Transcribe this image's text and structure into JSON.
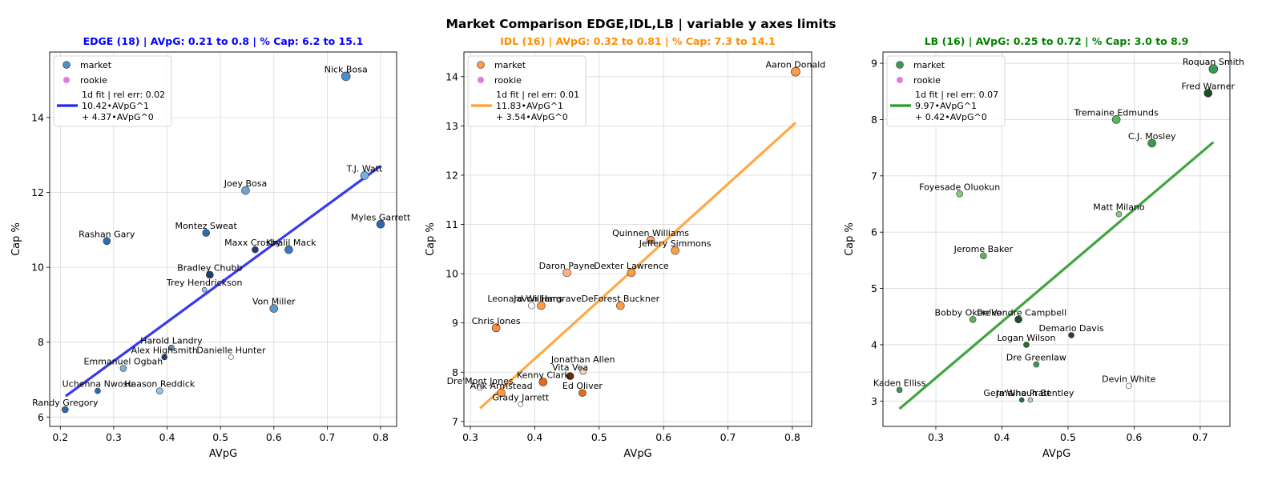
{
  "figure": {
    "title": "Market Comparison EDGE,IDL,LB | variable y axes limits"
  },
  "chart_data": [
    {
      "type": "scatter",
      "title": "EDGE (18) | AVpG: 0.21 to 0.8 | % Cap: 6.2 to 15.1",
      "title_color": "#0000ff",
      "xlabel": "AVpG",
      "ylabel": "Cap %",
      "xlim": [
        0.18,
        0.83
      ],
      "ylim": [
        5.75,
        15.75
      ],
      "xticks": [
        "0.2",
        "0.3",
        "0.4",
        "0.5",
        "0.6",
        "0.7",
        "0.8"
      ],
      "yticks": [
        "6",
        "8",
        "10",
        "12",
        "14"
      ],
      "grid": true,
      "legend_position": "top-left",
      "legend": {
        "market": "market",
        "rookie": "rookie",
        "fit_lines": [
          "1d fit | rel err: 0.02",
          "10.42•AVpG^1",
          "+ 4.37•AVpG^0"
        ]
      },
      "fit": {
        "slope": 10.42,
        "intercept": 4.37,
        "x_range": [
          0.21,
          0.8
        ],
        "color": "#2424f0"
      },
      "points": [
        {
          "name": "Nick Bosa",
          "x": 0.735,
          "y": 15.1,
          "s": 5.5,
          "c": "#4a8fc9"
        },
        {
          "name": "T.J. Watt",
          "x": 0.77,
          "y": 12.45,
          "s": 5,
          "c": "#74b0e0"
        },
        {
          "name": "Myles Garrett",
          "x": 0.8,
          "y": 11.15,
          "s": 5,
          "c": "#2a6aae"
        },
        {
          "name": "Joey Bosa",
          "x": 0.547,
          "y": 12.05,
          "s": 5,
          "c": "#6aa5d8"
        },
        {
          "name": "Rashan Gary",
          "x": 0.287,
          "y": 10.7,
          "s": 4.5,
          "c": "#2d6db0"
        },
        {
          "name": "Montez Sweat",
          "x": 0.473,
          "y": 10.92,
          "s": 4.5,
          "c": "#2a6aae"
        },
        {
          "name": "Maxx Crosby",
          "x": 0.565,
          "y": 10.47,
          "s": 4,
          "c": "#1d3f70"
        },
        {
          "name": "Khalil Mack",
          "x": 0.628,
          "y": 10.47,
          "s": 5,
          "c": "#3a7bbd"
        },
        {
          "name": "Bradley Chubb",
          "x": 0.48,
          "y": 9.8,
          "s": 4.5,
          "c": "#1d3f70"
        },
        {
          "name": "Trey Hendrickson",
          "x": 0.47,
          "y": 9.4,
          "s": 3,
          "c": "#9cc4e8"
        },
        {
          "name": "Von Miller",
          "x": 0.6,
          "y": 8.9,
          "s": 5,
          "c": "#5a98d0"
        },
        {
          "name": "Harold Landry",
          "x": 0.408,
          "y": 7.85,
          "s": 3.5,
          "c": "#5a98d0"
        },
        {
          "name": "Alex Highsmith",
          "x": 0.395,
          "y": 7.6,
          "s": 3.5,
          "c": "#1d3f70"
        },
        {
          "name": "Danielle Hunter",
          "x": 0.52,
          "y": 7.6,
          "s": 3,
          "c": "#ffffff"
        },
        {
          "name": "Emmanuel Ogbah",
          "x": 0.318,
          "y": 7.3,
          "s": 4,
          "c": "#7ab3e0"
        },
        {
          "name": "Uchenna Nwosu",
          "x": 0.27,
          "y": 6.7,
          "s": 3.5,
          "c": "#2a6aae"
        },
        {
          "name": "Haason Reddick",
          "x": 0.386,
          "y": 6.7,
          "s": 4,
          "c": "#9cc4e8"
        },
        {
          "name": "Randy Gregory",
          "x": 0.209,
          "y": 6.2,
          "s": 4,
          "c": "#2a6aae"
        }
      ]
    },
    {
      "type": "scatter",
      "title": "IDL (16) | AVpG: 0.32 to 0.81 | % Cap: 7.3 to 14.1",
      "title_color": "#ff8c00",
      "xlabel": "AVpG",
      "ylabel": "Cap %",
      "xlim": [
        0.29,
        0.83
      ],
      "ylim": [
        6.9,
        14.5
      ],
      "xticks": [
        "0.3",
        "0.4",
        "0.5",
        "0.6",
        "0.7",
        "0.8"
      ],
      "yticks": [
        "7",
        "8",
        "9",
        "10",
        "11",
        "12",
        "13",
        "14"
      ],
      "grid": true,
      "legend_position": "top-left",
      "legend": {
        "market": "market",
        "rookie": "rookie",
        "fit_lines": [
          "1d fit | rel err: 0.01",
          "11.83•AVpG^1",
          "+ 3.54•AVpG^0"
        ]
      },
      "fit": {
        "slope": 11.83,
        "intercept": 3.54,
        "x_range": [
          0.315,
          0.805
        ],
        "color": "#ffa030"
      },
      "points": [
        {
          "name": "Aaron Donald",
          "x": 0.805,
          "y": 14.1,
          "s": 5.5,
          "c": "#ff9a45"
        },
        {
          "name": "Quinnen Williams",
          "x": 0.58,
          "y": 10.68,
          "s": 5,
          "c": "#ffa060"
        },
        {
          "name": "Jeffery Simmons",
          "x": 0.618,
          "y": 10.47,
          "s": 5,
          "c": "#ff9a45"
        },
        {
          "name": "Daron Payne",
          "x": 0.45,
          "y": 10.02,
          "s": 5,
          "c": "#ffb27a"
        },
        {
          "name": "Dexter Lawrence",
          "x": 0.55,
          "y": 10.02,
          "s": 5,
          "c": "#ff9a45"
        },
        {
          "name": "Leonard Williams",
          "x": 0.395,
          "y": 9.35,
          "s": 4,
          "c": "#ffffff"
        },
        {
          "name": "Javon Hargrave",
          "x": 0.41,
          "y": 9.35,
          "s": 5,
          "c": "#ff9a45"
        },
        {
          "name": "DeForest Buckner",
          "x": 0.533,
          "y": 9.35,
          "s": 5,
          "c": "#ff9a45"
        },
        {
          "name": "Chris Jones",
          "x": 0.34,
          "y": 8.9,
          "s": 5,
          "c": "#ff8c3a"
        },
        {
          "name": "Jonathan Allen",
          "x": 0.475,
          "y": 8.02,
          "s": 4,
          "c": "#ffd3b0"
        },
        {
          "name": "Vita Vea",
          "x": 0.455,
          "y": 7.92,
          "s": 4.5,
          "c": "#6b2a0a"
        },
        {
          "name": "Kenny Clark",
          "x": 0.413,
          "y": 7.8,
          "s": 5,
          "c": "#e56a1a"
        },
        {
          "name": "Dre'Mont Jones",
          "x": 0.315,
          "y": 7.68,
          "s": 3,
          "c": "#ffffff"
        },
        {
          "name": "Arik Armstead",
          "x": 0.348,
          "y": 7.58,
          "s": 5,
          "c": "#ff9a45"
        },
        {
          "name": "Ed Oliver",
          "x": 0.474,
          "y": 7.58,
          "s": 4.5,
          "c": "#e56a1a"
        },
        {
          "name": "Grady Jarrett",
          "x": 0.378,
          "y": 7.35,
          "s": 3,
          "c": "#ffffff"
        }
      ]
    },
    {
      "type": "scatter",
      "title": "LB (16) | AVpG: 0.25 to 0.72 | % Cap: 3.0 to 8.9",
      "title_color": "#008000",
      "xlabel": "AVpG",
      "ylabel": "Cap %",
      "xlim": [
        0.22,
        0.745
      ],
      "ylim": [
        2.55,
        9.2
      ],
      "xticks": [
        "0.3",
        "0.4",
        "0.5",
        "0.6",
        "0.7"
      ],
      "yticks": [
        "3",
        "4",
        "5",
        "6",
        "7",
        "8",
        "9"
      ],
      "grid": true,
      "legend_position": "top-left",
      "legend": {
        "market": "market",
        "rookie": "rookie",
        "fit_lines": [
          "1d fit | rel err: 0.07",
          "9.97•AVpG^1",
          "+ 0.42•AVpG^0"
        ]
      },
      "fit": {
        "slope": 9.97,
        "intercept": 0.42,
        "x_range": [
          0.245,
          0.72
        ],
        "color": "#2c9a2c"
      },
      "points": [
        {
          "name": "Roquan Smith",
          "x": 0.72,
          "y": 8.9,
          "s": 5.5,
          "c": "#3c9a50"
        },
        {
          "name": "Fred Warner",
          "x": 0.712,
          "y": 8.47,
          "s": 5,
          "c": "#1a5028"
        },
        {
          "name": "Tremaine Edmunds",
          "x": 0.573,
          "y": 8.0,
          "s": 5,
          "c": "#5ab460"
        },
        {
          "name": "C.J. Mosley",
          "x": 0.627,
          "y": 7.58,
          "s": 5,
          "c": "#3c9a50"
        },
        {
          "name": "Foyesade Oluokun",
          "x": 0.336,
          "y": 6.68,
          "s": 4,
          "c": "#84c884"
        },
        {
          "name": "Matt Milano",
          "x": 0.577,
          "y": 6.32,
          "s": 3.5,
          "c": "#84c884"
        },
        {
          "name": "Jerome Baker",
          "x": 0.372,
          "y": 5.58,
          "s": 4,
          "c": "#5ab460"
        },
        {
          "name": "Bobby Okereke",
          "x": 0.356,
          "y": 4.45,
          "s": 4,
          "c": "#5ab460"
        },
        {
          "name": "De'Vondre Campbell",
          "x": 0.425,
          "y": 4.45,
          "s": 4.5,
          "c": "#1a5028"
        },
        {
          "name": "Demario Davis",
          "x": 0.505,
          "y": 4.17,
          "s": 3.5,
          "c": "#1a5028"
        },
        {
          "name": "Logan Wilson",
          "x": 0.437,
          "y": 4.0,
          "s": 3.5,
          "c": "#2a6e3a"
        },
        {
          "name": "Dre Greenlaw",
          "x": 0.452,
          "y": 3.65,
          "s": 3.5,
          "c": "#3c9a50"
        },
        {
          "name": "Devin White",
          "x": 0.592,
          "y": 3.27,
          "s": 3.5,
          "c": "#ffffff"
        },
        {
          "name": "Kaden Elliss",
          "x": 0.245,
          "y": 3.2,
          "s": 3.5,
          "c": "#3c9a50"
        },
        {
          "name": "Germaine Pratt",
          "x": 0.43,
          "y": 3.02,
          "s": 3,
          "c": "#2a6e3a"
        },
        {
          "name": "Ja'Whaun Bentley",
          "x": 0.443,
          "y": 3.02,
          "s": 3,
          "c": "#a8dca8"
        }
      ]
    }
  ]
}
